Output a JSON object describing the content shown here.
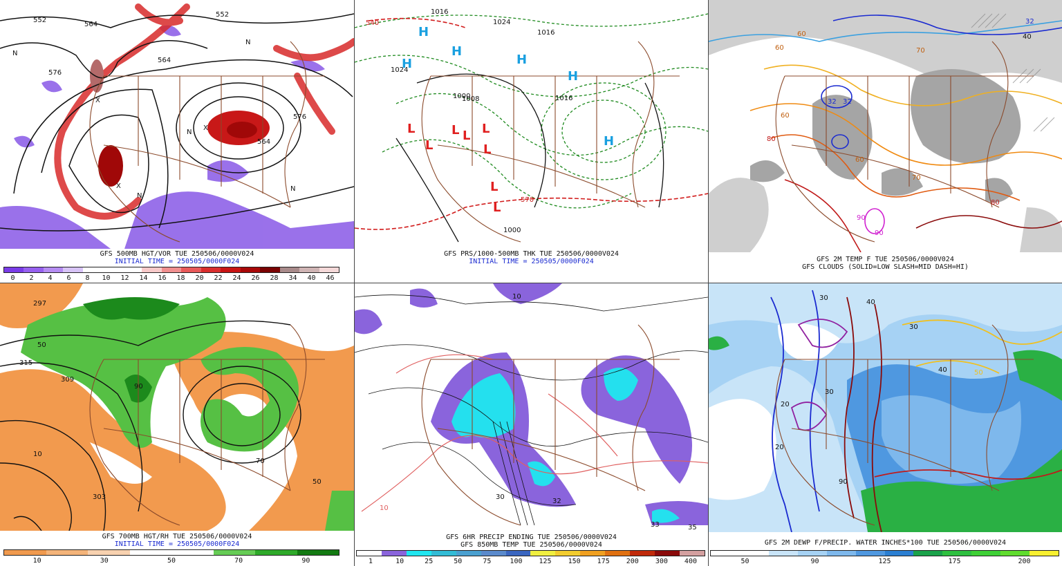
{
  "panels": [
    {
      "id": "p1",
      "line1": "GFS 500MB HGT/VOR TUE 250506/0000V024",
      "line2": "INITIAL TIME = 250505/0000F024",
      "colorbar": {
        "colors": [
          "#7a3ce8",
          "#9660ef",
          "#b58cf2",
          "#d7c3f6",
          "#ffffff",
          "#ffffff",
          "#ffffff",
          "#f7c9c9",
          "#f08f8f",
          "#e85959",
          "#d92d2d",
          "#c81414",
          "#a80808",
          "#7a0303",
          "#a88a8a",
          "#cfb4b4",
          "#f4d8d8"
        ],
        "labels": [
          "0",
          "2",
          "4",
          "6",
          "8",
          "10",
          "12",
          "14",
          "16",
          "18",
          "20",
          "22",
          "24",
          "26",
          "28",
          "34",
          "40",
          "46"
        ]
      },
      "map_labels": [
        "552",
        "564",
        "576",
        "564",
        "552",
        "576",
        "564",
        "N",
        "N",
        "X",
        "N",
        "X",
        "X",
        "N",
        "N"
      ]
    },
    {
      "id": "p2",
      "line1": "GFS PRS/1000-500MB THK TUE 250506/0000V024",
      "line2": "INITIAL TIME = 250505/0000F024",
      "map_labels": [
        "1016",
        "1024",
        "540",
        "1008",
        "1016",
        "1024",
        "1000",
        "1016",
        "570",
        "1000",
        "H",
        "H",
        "H",
        "H",
        "H",
        "H",
        "L",
        "L",
        "L",
        "L",
        "L",
        "L",
        "L",
        "L"
      ]
    },
    {
      "id": "p3",
      "line1": "GFS 2M TEMP F TUE 250506/0000V024",
      "line2": "GFS CLOUDS (SOLID=LOW SLASH=MID DASH=HI)",
      "map_labels": [
        "60",
        "60",
        "70",
        "32",
        "32",
        "60",
        "60",
        "70",
        "80",
        "90",
        "90",
        "80",
        "40",
        "32"
      ]
    },
    {
      "id": "p4",
      "line1": "GFS 700MB HGT/RH TUE 250506/0000V024",
      "line2": "INITIAL TIME = 250505/0000F024",
      "colorbar": {
        "colors": [
          "#f09a4e",
          "#f4b47a",
          "#f8d2b0",
          "#ffffff",
          "#ffffff",
          "#66cc55",
          "#2faa2a",
          "#137a12"
        ],
        "labels": [
          "10",
          "30",
          "50",
          "70",
          "90"
        ]
      },
      "map_labels": [
        "297",
        "315",
        "309",
        "303",
        "50",
        "10",
        "50",
        "90",
        "70"
      ]
    },
    {
      "id": "p5",
      "line1": "GFS 6HR PRECIP ENDING TUE 250506/0000V024",
      "line2": "GFS 850MB TEMP TUE 250506/0000V024",
      "colorbar": {
        "colors": [
          "#ffffff",
          "#8a64dc",
          "#20e6f0",
          "#33bcd6",
          "#4aa0d0",
          "#5a8acc",
          "#3a66c0",
          "#f0ef40",
          "#f2cc2e",
          "#f0a020",
          "#e07010",
          "#c02a0a",
          "#8a0a0a",
          "#d4a0a0"
        ],
        "labels": [
          "1",
          "10",
          "25",
          "50",
          "75",
          "100",
          "125",
          "150",
          "175",
          "200",
          "300",
          "400"
        ]
      },
      "map_labels": [
        "10",
        "30",
        "32",
        "33",
        "35",
        "10"
      ]
    },
    {
      "id": "p6",
      "line1": "GFS 2M DEWP F/PRECIP. WATER INCHES*100 TUE 250506/0000V024",
      "colorbar": {
        "colors": [
          "#ffffff",
          "#ffffff",
          "#c8e4f8",
          "#a6d2f4",
          "#7eb8ec",
          "#4f98e0",
          "#2b7fd2",
          "#1aa24a",
          "#2ec040",
          "#3ed036",
          "#60dc2e",
          "#f8f030"
        ],
        "labels": [
          "50",
          "90",
          "125",
          "175",
          "200"
        ]
      },
      "map_labels": [
        "30",
        "40",
        "30",
        "20",
        "50",
        "40",
        "30",
        "20",
        "90"
      ]
    }
  ]
}
